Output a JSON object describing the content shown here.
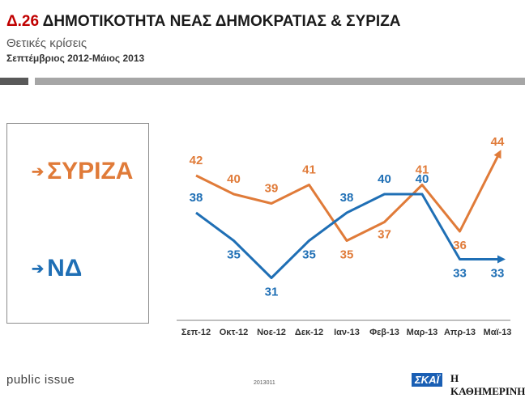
{
  "header": {
    "number": "Δ.26",
    "title": "ΔΗΜΟΤΙΚΟΤΗΤΑ ΝΕΑΣ ΔΗΜΟΚΡΑΤΙΑΣ & ΣΥΡΙΖΑ",
    "subtitle": "Θετικές κρίσεις",
    "period": "Σεπτέμβριος 2012-Μάιος 2013"
  },
  "legend": {
    "syriza_label": "ΣΥΡΙΖΑ",
    "nd_label": "ΝΔ",
    "arrow_icon": "arrow-right-icon"
  },
  "chart_data": {
    "type": "line",
    "title": "ΔΗΜΟΤΙΚΟΤΗΤΑ ΝΕΑΣ ΔΗΜΟΚΡΑΤΙΑΣ & ΣΥΡΙΖΑ",
    "subtitle": "Θετικές κρίσεις",
    "categories": [
      "Σεπ-12",
      "Οκτ-12",
      "Νοε-12",
      "Δεκ-12",
      "Ιαν-13",
      "Φεβ-13",
      "Μαρ-13",
      "Απρ-13",
      "Μαϊ-13"
    ],
    "series": [
      {
        "name": "ΣΥΡΙΖΑ",
        "color": "#e07b39",
        "values": [
          42,
          40,
          39,
          41,
          35,
          37,
          41,
          36,
          44
        ]
      },
      {
        "name": "ΝΔ",
        "color": "#1f6fb5",
        "values": [
          38,
          35,
          31,
          35,
          38,
          40,
          40,
          33,
          33
        ]
      }
    ],
    "xlabel": "",
    "ylabel": "",
    "ylim": [
      28,
      48
    ],
    "grid": false,
    "legend": "left"
  },
  "footer": {
    "brand": "public issue",
    "code": "2013011",
    "logo_skai": "ΣΚΑΪ",
    "logo_kathimerini": "Η ΚΑΘΗΜΕΡΙΝΗ"
  }
}
